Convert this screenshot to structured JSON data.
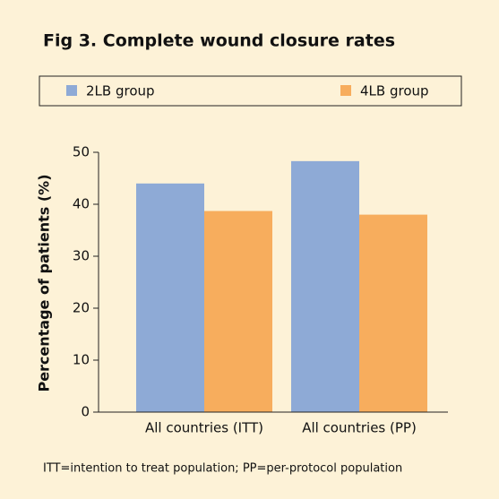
{
  "chart_data": {
    "type": "bar",
    "title": "Fig 3. Complete wound closure rates",
    "y_label": "Percentage of patients (%)",
    "categories": [
      "All countries (ITT)",
      "All countries (PP)"
    ],
    "series": [
      {
        "name": "2LB group",
        "color": "#8eaad6",
        "values": [
          44,
          48.3
        ]
      },
      {
        "name": "4LB group",
        "color": "#f7ad5d",
        "values": [
          38.7,
          38
        ]
      }
    ],
    "ylim": [
      0,
      50
    ],
    "yticks": [
      0,
      10,
      20,
      30,
      40,
      50
    ],
    "footnote": "ITT=intention to treat population; PP=per-protocol population"
  }
}
